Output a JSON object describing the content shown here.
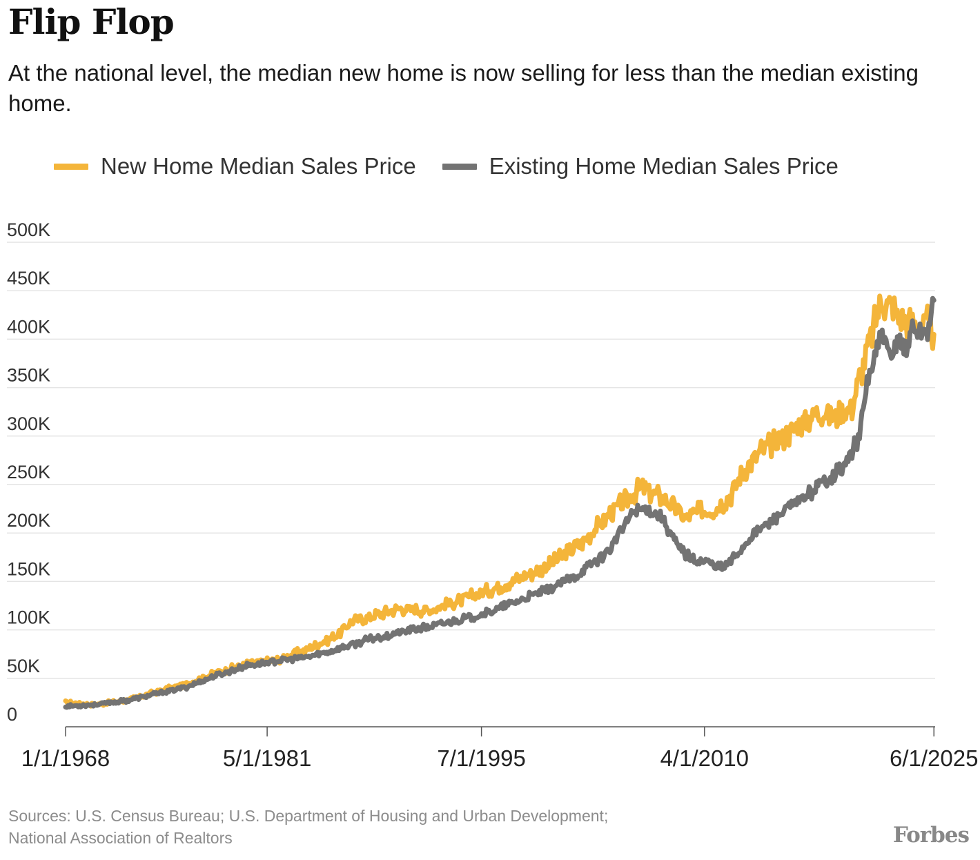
{
  "header": {
    "title": "Flip Flop",
    "subtitle": "At the national level, the median new home is now selling for less than the median existing home."
  },
  "footer": {
    "source_line1": "Sources: U.S. Census Bureau; U.S. Department of Housing and Urban Development;",
    "source_line2": "National Association of Realtors",
    "logo": "Forbes"
  },
  "colors": {
    "new_home": "#f4b53a",
    "existing_home": "#737373",
    "grid": "#e4e4e4",
    "axis": "#555555"
  },
  "chart_data": {
    "type": "line",
    "title": "Flip Flop",
    "xlabel": "",
    "ylabel": "",
    "xlim": [
      1968,
      2025.5
    ],
    "ylim": [
      0,
      500000
    ],
    "grid": true,
    "legend_position": "top-left",
    "x_tick_labels": [
      "1/1/1968",
      "5/1/1981",
      "7/1/1995",
      "4/1/2010",
      "6/1/2025"
    ],
    "x_tick_values": [
      1968,
      1981.33,
      1995.5,
      2010.25,
      2025.42
    ],
    "y_tick_labels": [
      "0",
      "50K",
      "100K",
      "150K",
      "200K",
      "250K",
      "300K",
      "350K",
      "400K",
      "450K",
      "500K"
    ],
    "y_tick_values": [
      0,
      50000,
      100000,
      150000,
      200000,
      250000,
      300000,
      350000,
      400000,
      450000,
      500000
    ],
    "series": [
      {
        "name": "New Home Median Sales Price",
        "x": [
          1968,
          1970,
          1972,
          1974,
          1976,
          1978,
          1980,
          1982,
          1984,
          1986,
          1987,
          1988,
          1990,
          1992,
          1994,
          1996,
          1998,
          2000,
          2002,
          2004,
          2006,
          2007,
          2008,
          2009,
          2010,
          2011,
          2012,
          2013,
          2014,
          2015,
          2016,
          2017,
          2018,
          2019,
          2020,
          2021,
          2022,
          2022.8,
          2023,
          2024,
          2025,
          2025.42
        ],
        "values": [
          25000,
          23000,
          27000,
          36000,
          44000,
          56000,
          65000,
          69000,
          80000,
          95000,
          110000,
          113000,
          122000,
          120000,
          130000,
          141000,
          153000,
          167000,
          188000,
          220000,
          246000,
          240000,
          230000,
          215000,
          222000,
          225000,
          240000,
          268000,
          285000,
          295000,
          305000,
          318000,
          325000,
          320000,
          330000,
          390000,
          440000,
          430000,
          420000,
          415000,
          415000,
          405000
        ]
      },
      {
        "name": "Existing Home Median Sales Price",
        "x": [
          1968,
          1970,
          1972,
          1974,
          1976,
          1978,
          1980,
          1982,
          1984,
          1986,
          1988,
          1990,
          1992,
          1994,
          1996,
          1998,
          2000,
          2002,
          2004,
          2005.5,
          2006.5,
          2007.5,
          2008.5,
          2009.5,
          2010.5,
          2011.5,
          2012.5,
          2013.5,
          2014.5,
          2015.5,
          2016.5,
          2017.5,
          2018.5,
          2019.5,
          2020.5,
          2021,
          2022,
          2022.6,
          2023,
          2023.6,
          2024,
          2024.5,
          2025,
          2025.42
        ],
        "values": [
          21000,
          23000,
          27000,
          34000,
          41000,
          53000,
          63000,
          68000,
          72000,
          80000,
          90000,
          97000,
          103000,
          110000,
          118000,
          130000,
          142000,
          158000,
          183000,
          222000,
          225000,
          215000,
          185000,
          172000,
          170000,
          163000,
          180000,
          200000,
          210000,
          222000,
          233000,
          245000,
          258000,
          268000,
          300000,
          355000,
          405000,
          375000,
          405000,
          385000,
          415000,
          405000,
          410000,
          440000
        ]
      }
    ]
  }
}
